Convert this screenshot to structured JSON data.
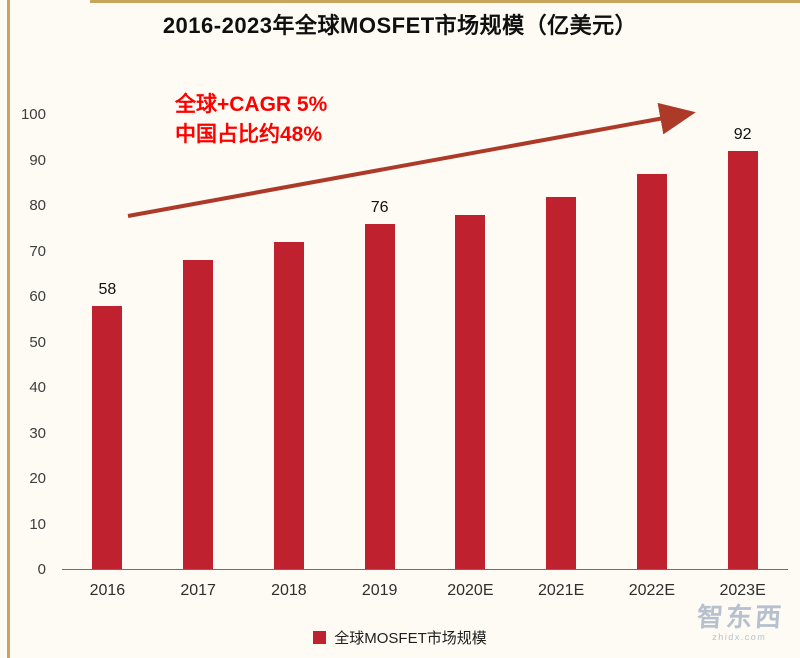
{
  "page": {
    "background": "#FDFBF3",
    "accent_gold": "#C9A45C"
  },
  "chart_data": {
    "type": "bar",
    "title": "2016-2023年全球MOSFET市场规模（亿美元）",
    "categories": [
      "2016",
      "2017",
      "2018",
      "2019",
      "2020E",
      "2021E",
      "2022E",
      "2023E"
    ],
    "values": [
      58,
      68,
      72,
      76,
      78,
      82,
      87,
      92
    ],
    "labeled_indices": [
      0,
      3,
      7
    ],
    "bar_color": "#C0212F",
    "ylim": [
      0,
      100
    ],
    "yticks": [
      0,
      10,
      20,
      30,
      40,
      50,
      60,
      70,
      80,
      90,
      100
    ],
    "grid": false,
    "xlabel": "",
    "ylabel": "",
    "legend": {
      "label": "全球MOSFET市场规模",
      "position": "bottom",
      "swatch_color": "#C0212F"
    },
    "annotation": {
      "lines": [
        "全球+CAGR 5%",
        "中国占比约48%"
      ],
      "color": "#FE0000"
    },
    "trend_arrow": {
      "color": "#AD3A28",
      "direction": "up-right"
    }
  },
  "watermark": {
    "name": "智东西",
    "domain": "zhidx.com",
    "color": "#B7C0CE"
  }
}
